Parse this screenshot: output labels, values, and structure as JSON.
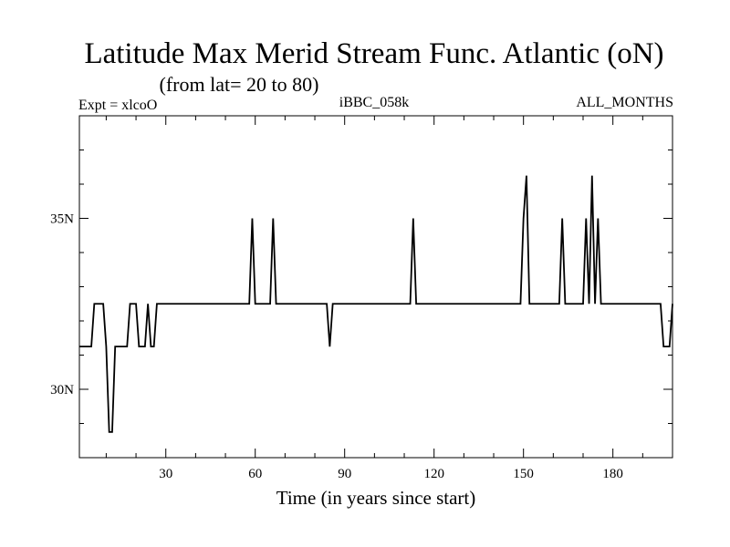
{
  "chart_data": {
    "type": "line",
    "title": "Latitude Max Merid Stream Func. Atlantic (oN)",
    "subtitle": "(from lat= 20 to 80)",
    "header_left": "Expt = xlcoO",
    "header_center": "iBBC_058k",
    "header_right": "ALL_MONTHS",
    "xlabel": "Time (in years since start)",
    "ylabel": "",
    "xlim": [
      1,
      200
    ],
    "ylim": [
      28,
      38
    ],
    "x_ticks": [
      30,
      60,
      90,
      120,
      150,
      180
    ],
    "x_tick_labels": [
      "30",
      "60",
      "90",
      "120",
      "150",
      "180"
    ],
    "y_ticks": [
      30,
      35
    ],
    "y_tick_labels": [
      "30N",
      "35N"
    ],
    "series": [
      {
        "x": [
          1,
          5,
          6,
          8,
          9,
          10,
          11,
          12,
          13,
          16,
          17,
          18,
          19,
          20,
          21,
          22,
          23,
          24,
          25,
          26,
          27,
          28,
          29,
          58,
          59,
          60,
          61,
          62,
          65,
          66,
          67,
          68,
          69,
          84,
          85,
          86,
          87,
          88,
          112,
          113,
          114,
          115,
          116,
          149,
          150,
          151,
          152,
          153,
          162,
          163,
          164,
          165,
          170,
          171,
          172,
          173,
          174,
          175,
          176,
          177,
          196,
          197,
          199,
          200
        ],
        "values": [
          31.25,
          31.25,
          32.5,
          32.5,
          32.5,
          31.25,
          28.75,
          28.75,
          31.25,
          31.25,
          31.25,
          32.5,
          32.5,
          32.5,
          31.25,
          31.25,
          31.25,
          32.5,
          31.25,
          31.25,
          32.5,
          32.5,
          32.5,
          32.5,
          35.0,
          32.5,
          32.5,
          32.5,
          32.5,
          35.0,
          32.5,
          32.5,
          32.5,
          32.5,
          31.25,
          32.5,
          32.5,
          32.5,
          32.5,
          35.0,
          32.5,
          32.5,
          32.5,
          32.5,
          35.0,
          36.25,
          32.5,
          32.5,
          32.5,
          35.0,
          32.5,
          32.5,
          32.5,
          35.0,
          32.5,
          36.25,
          32.5,
          35.0,
          32.5,
          32.5,
          32.5,
          31.25,
          31.25,
          32.5
        ]
      }
    ]
  }
}
